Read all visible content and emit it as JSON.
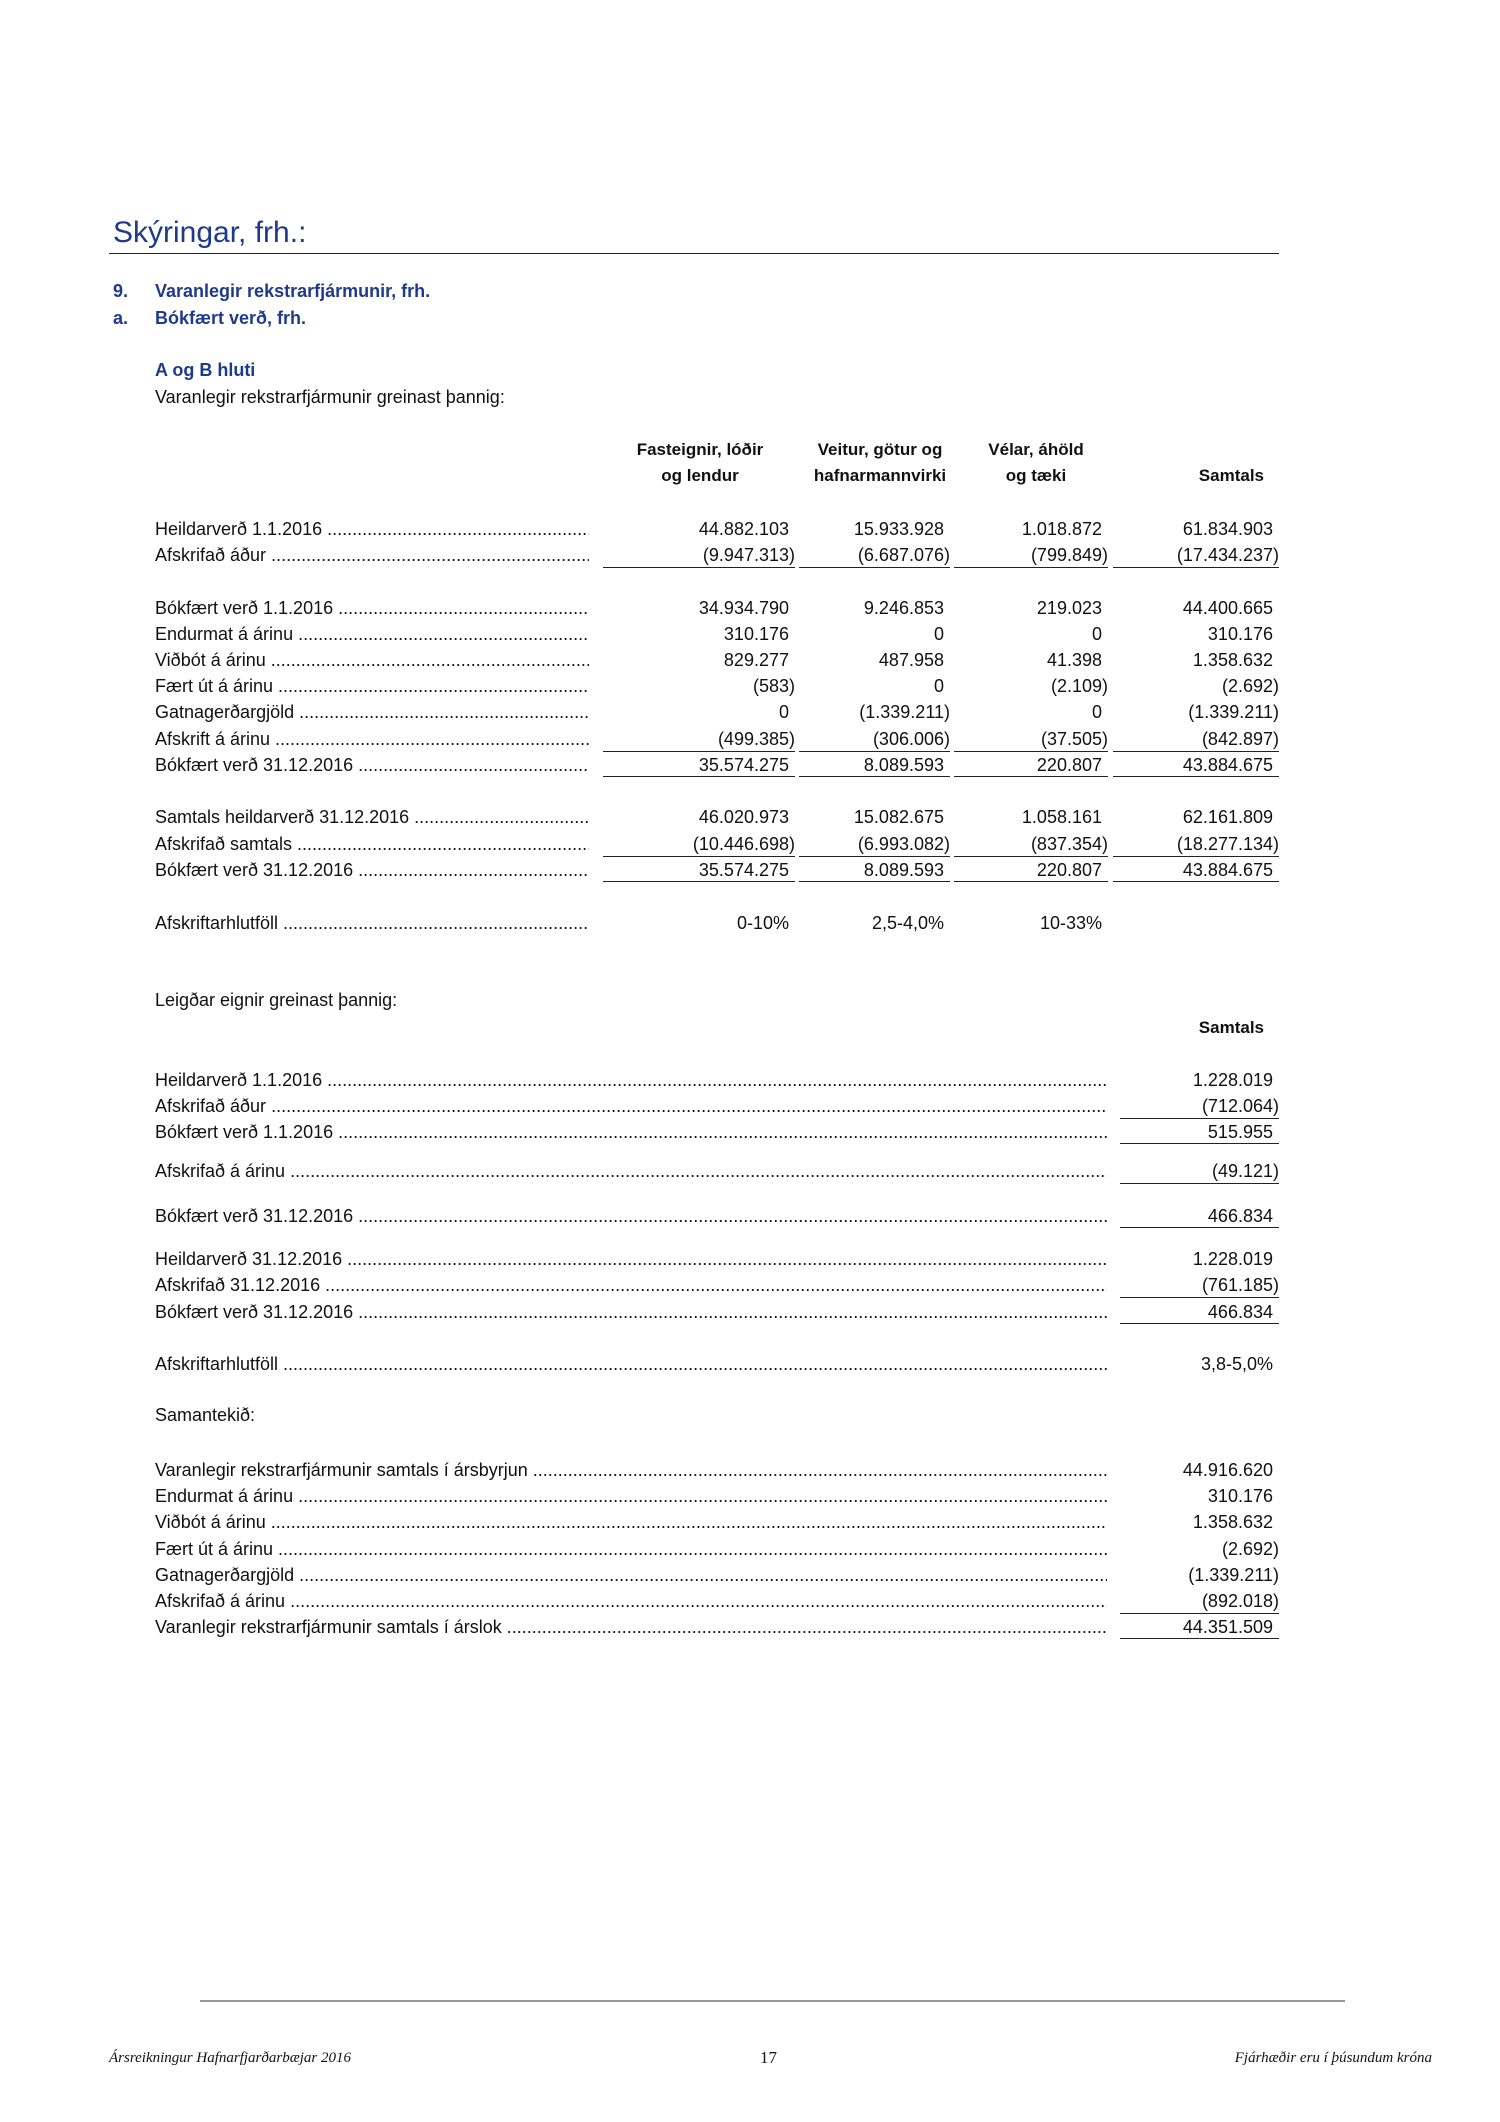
{
  "header": {
    "title": "Skýringar, frh.:"
  },
  "sections": {
    "s9": {
      "num": "9.",
      "label": "Varanlegir rekstrarfjármunir, frh."
    },
    "sa": {
      "num": "a.",
      "label": "Bókfært verð, frh."
    },
    "sub_title": "A og B hluti",
    "intro": "Varanlegir rekstrarfjármunir greinast þannig:"
  },
  "table1": {
    "columns": [
      {
        "line1": "Fasteignir, lóðir",
        "line2": "og lendur"
      },
      {
        "line1": "Veitur, götur og",
        "line2": "hafnarmannvirki"
      },
      {
        "line1": "Vélar, áhöld",
        "line2": "og tæki"
      },
      {
        "line1": "",
        "line2": "Samtals"
      }
    ],
    "rows": [
      {
        "label": "Heildarverð 1.1.2016",
        "values": [
          "44.882.103",
          "15.933.928",
          "1.018.872",
          "61.834.903"
        ]
      },
      {
        "label": "Afskrifað áður",
        "values": [
          "(9.947.313)",
          "(6.687.076)",
          "(799.849)",
          "(17.434.237)"
        ]
      },
      {
        "label": "Bókfært verð 1.1.2016",
        "values": [
          "34.934.790",
          "9.246.853",
          "219.023",
          "44.400.665"
        ]
      },
      {
        "label": "Endurmat á árinu",
        "values": [
          "310.176",
          "0",
          "0",
          "310.176"
        ]
      },
      {
        "label": "Viðbót á árinu",
        "values": [
          "829.277",
          "487.958",
          "41.398",
          "1.358.632"
        ]
      },
      {
        "label": "Fært út á árinu",
        "values": [
          "(583)",
          "0",
          "(2.109)",
          "(2.692)"
        ]
      },
      {
        "label": "Gatnagerðargjöld",
        "values": [
          "0",
          "(1.339.211)",
          "0",
          "(1.339.211)"
        ]
      },
      {
        "label": "Afskrift á árinu",
        "values": [
          "(499.385)",
          "(306.006)",
          "(37.505)",
          "(842.897)"
        ]
      },
      {
        "label": "Bókfært verð 31.12.2016",
        "values": [
          "35.574.275",
          "8.089.593",
          "220.807",
          "43.884.675"
        ]
      },
      {
        "label": "Samtals heildarverð 31.12.2016",
        "values": [
          "46.020.973",
          "15.082.675",
          "1.058.161",
          "62.161.809"
        ]
      },
      {
        "label": "Afskrifað samtals",
        "values": [
          "(10.446.698)",
          "(6.993.082)",
          "(837.354)",
          "(18.277.134)"
        ]
      },
      {
        "label": "Bókfært verð 31.12.2016",
        "values": [
          "35.574.275",
          "8.089.593",
          "220.807",
          "43.884.675"
        ]
      },
      {
        "label": "Afskriftarhlutföll",
        "values": [
          "0-10%",
          "2,5-4,0%",
          "10-33%",
          ""
        ]
      }
    ]
  },
  "table2": {
    "intro": "Leigðar eignir greinast þannig:",
    "column": "Samtals",
    "rows": [
      {
        "label": "Heildarverð 1.1.2016",
        "value": "1.228.019"
      },
      {
        "label": "Afskrifað áður",
        "value": "(712.064)"
      },
      {
        "label": "Bókfært verð 1.1.2016",
        "value": "515.955"
      },
      {
        "label": "Afskrifað á árinu",
        "value": "(49.121)"
      },
      {
        "label": "Bókfært verð 31.12.2016",
        "value": "466.834"
      },
      {
        "label": "Heildarverð 31.12.2016",
        "value": "1.228.019"
      },
      {
        "label": "Afskrifað 31.12.2016",
        "value": "(761.185)"
      },
      {
        "label": "Bókfært verð 31.12.2016",
        "value": "466.834"
      },
      {
        "label": "Afskriftarhlutföll",
        "value": "3,8-5,0%"
      }
    ]
  },
  "table3": {
    "intro": "Samantekið:",
    "rows": [
      {
        "label": "Varanlegir rekstrarfjármunir samtals í ársbyrjun",
        "value": "44.916.620"
      },
      {
        "label": "Endurmat á árinu",
        "value": "310.176"
      },
      {
        "label": "Viðbót á árinu",
        "value": "1.358.632"
      },
      {
        "label": "Fært út á árinu",
        "value": "(2.692)"
      },
      {
        "label": "Gatnagerðargjöld",
        "value": "(1.339.211)"
      },
      {
        "label": "Afskrifað á árinu",
        "value": "(892.018)"
      },
      {
        "label": "Varanlegir rekstrarfjármunir samtals í árslok",
        "value": "44.351.509"
      }
    ]
  },
  "footer": {
    "left": "Ársreikningur Hafnarfjarðarbæjar 2016",
    "page": "17",
    "right": "Fjárhæðir eru í þúsundum króna"
  }
}
